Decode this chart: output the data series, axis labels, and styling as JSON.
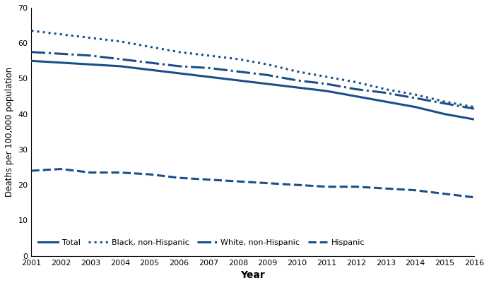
{
  "years": [
    2001,
    2002,
    2003,
    2004,
    2005,
    2006,
    2007,
    2008,
    2009,
    2010,
    2011,
    2012,
    2013,
    2014,
    2015,
    2016
  ],
  "total": [
    55.0,
    54.5,
    54.0,
    53.5,
    52.5,
    51.5,
    50.5,
    49.5,
    48.5,
    47.5,
    46.5,
    45.0,
    43.5,
    42.0,
    40.0,
    38.5
  ],
  "black_nonhisp": [
    63.5,
    62.5,
    61.5,
    60.5,
    59.0,
    57.5,
    56.5,
    55.5,
    54.0,
    52.0,
    50.5,
    49.0,
    47.0,
    45.5,
    43.5,
    42.0
  ],
  "white_nonhisp": [
    57.5,
    57.0,
    56.5,
    55.5,
    54.5,
    53.5,
    53.0,
    52.0,
    51.0,
    49.5,
    48.5,
    47.0,
    46.0,
    44.5,
    43.0,
    41.5
  ],
  "hispanic": [
    24.0,
    24.5,
    23.5,
    23.5,
    23.0,
    22.0,
    21.5,
    21.0,
    20.5,
    20.0,
    19.5,
    19.5,
    19.0,
    18.5,
    17.5,
    16.5
  ],
  "color": "#1a4f8a",
  "ylabel": "Deaths per 100,000 population",
  "xlabel": "Year",
  "ylim": [
    0,
    70
  ],
  "yticks": [
    0,
    10,
    20,
    30,
    40,
    50,
    60,
    70
  ],
  "legend_labels": [
    "Total",
    "Black, non-Hispanic",
    "White, non-Hispanic",
    "Hispanic"
  ]
}
